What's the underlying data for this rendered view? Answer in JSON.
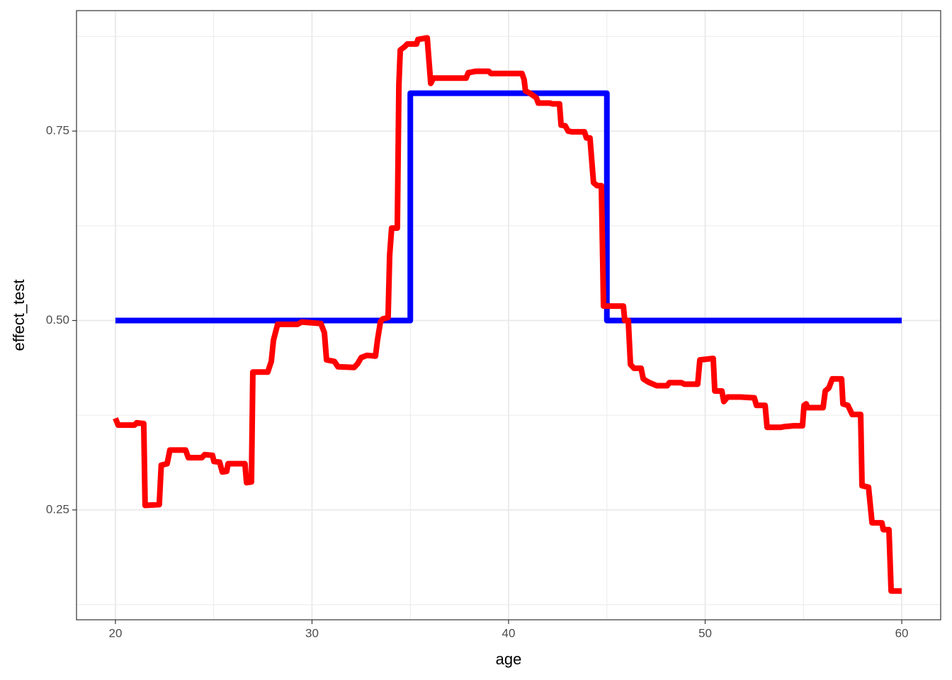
{
  "chart_data": {
    "type": "line",
    "x_label": "age",
    "y_label": "effect_test",
    "xlim": [
      18.02,
      61.98
    ],
    "ylim": [
      0.105,
      0.909
    ],
    "xticks": [
      20,
      30,
      40,
      50,
      60
    ],
    "yticks": [
      0.25,
      {
        "value": 0.5,
        "label": "0.50"
      },
      0.75
    ],
    "grid": true,
    "minor_grid": true,
    "series": [
      {
        "color": "#0000ff",
        "x": [
          20,
          35,
          35,
          45,
          45,
          60
        ],
        "values": [
          0.5,
          0.5,
          0.8,
          0.8,
          0.5,
          0.5
        ]
      },
      {
        "color": "#ff0000",
        "x": [
          20,
          20.14,
          20.97,
          21.08,
          21.44,
          21.51,
          22.23,
          22.33,
          22.63,
          22.77,
          23.57,
          23.71,
          24.4,
          24.54,
          24.94,
          25.01,
          25.3,
          25.44,
          25.66,
          25.73,
          26.59,
          26.67,
          26.92,
          26.99,
          27.75,
          27.93,
          28.04,
          28.18,
          28.25,
          29.26,
          29.48,
          30.45,
          30.63,
          30.74,
          31.14,
          31.32,
          32.14,
          32.32,
          32.5,
          32.79,
          33.23,
          33.33,
          33.48,
          33.59,
          33.87,
          33.95,
          34.05,
          34.34,
          34.42,
          34.49,
          34.74,
          34.85,
          35.32,
          35.39,
          35.86,
          36.04,
          36.18,
          37.84,
          37.95,
          38.34,
          38.63,
          38.99,
          39.1,
          40.68,
          40.79,
          40.86,
          41.08,
          41.41,
          41.51,
          42.09,
          42.23,
          42.59,
          42.67,
          42.88,
          43.03,
          43.24,
          43.86,
          43.96,
          44.14,
          44.32,
          44.5,
          44.72,
          44.83,
          45.84,
          45.91,
          46.09,
          46.2,
          46.38,
          46.74,
          46.85,
          47.03,
          47.17,
          47.53,
          48.07,
          48.18,
          48.79,
          48.94,
          49.62,
          49.73,
          50.41,
          50.49,
          50.85,
          50.95,
          51.14,
          51.78,
          52.5,
          52.61,
          53.05,
          53.15,
          53.84,
          54.05,
          54.49,
          54.95,
          55.03,
          55.14,
          55.21,
          56.0,
          56.11,
          56.29,
          56.47,
          56.94,
          57.01,
          57.26,
          57.48,
          57.91,
          57.98,
          58.31,
          58.49,
          58.99,
          59.06,
          59.35,
          59.46,
          60
        ],
        "values": [
          0.371,
          0.362,
          0.362,
          0.365,
          0.364,
          0.256,
          0.257,
          0.309,
          0.311,
          0.329,
          0.329,
          0.319,
          0.319,
          0.323,
          0.322,
          0.314,
          0.313,
          0.3,
          0.301,
          0.311,
          0.311,
          0.286,
          0.287,
          0.432,
          0.432,
          0.446,
          0.474,
          0.488,
          0.495,
          0.495,
          0.498,
          0.496,
          0.484,
          0.448,
          0.446,
          0.439,
          0.438,
          0.443,
          0.451,
          0.454,
          0.453,
          0.474,
          0.498,
          0.502,
          0.504,
          0.586,
          0.622,
          0.622,
          0.811,
          0.857,
          0.862,
          0.865,
          0.865,
          0.871,
          0.873,
          0.813,
          0.82,
          0.82,
          0.827,
          0.829,
          0.829,
          0.829,
          0.826,
          0.826,
          0.818,
          0.803,
          0.8,
          0.794,
          0.787,
          0.787,
          0.786,
          0.786,
          0.758,
          0.757,
          0.75,
          0.749,
          0.749,
          0.741,
          0.741,
          0.682,
          0.678,
          0.678,
          0.519,
          0.519,
          0.5,
          0.5,
          0.442,
          0.437,
          0.437,
          0.423,
          0.42,
          0.418,
          0.414,
          0.414,
          0.418,
          0.418,
          0.416,
          0.416,
          0.448,
          0.45,
          0.407,
          0.407,
          0.393,
          0.399,
          0.399,
          0.398,
          0.388,
          0.388,
          0.359,
          0.359,
          0.36,
          0.361,
          0.361,
          0.388,
          0.39,
          0.385,
          0.385,
          0.407,
          0.411,
          0.423,
          0.423,
          0.39,
          0.388,
          0.376,
          0.376,
          0.282,
          0.28,
          0.233,
          0.233,
          0.224,
          0.224,
          0.143,
          0.143
        ]
      }
    ]
  }
}
